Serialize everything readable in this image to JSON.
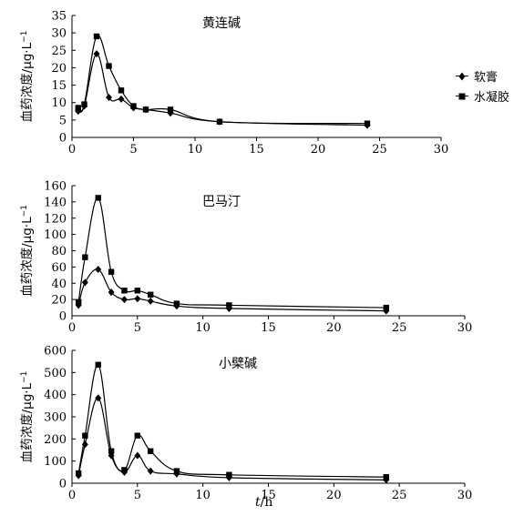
{
  "chart_data": [
    {
      "type": "line",
      "title": "黄连碱",
      "ylabel": "血药浓度/μg·L⁻¹",
      "xlim": [
        0,
        30
      ],
      "ylim": [
        0,
        35
      ],
      "xticks": [
        0,
        5,
        10,
        15,
        20,
        25,
        30
      ],
      "yticks": [
        0,
        5,
        10,
        15,
        20,
        25,
        30,
        35
      ],
      "series": [
        {
          "name": "软膏",
          "marker": "diamond",
          "x": [
            0.5,
            1,
            2,
            3,
            4,
            5,
            6,
            8,
            12,
            24
          ],
          "y": [
            7.5,
            9,
            24,
            11.5,
            11,
            8.5,
            8,
            7,
            4.5,
            3.5
          ]
        },
        {
          "name": "水凝胶",
          "marker": "square",
          "x": [
            0.5,
            1,
            2,
            3,
            4,
            5,
            6,
            8,
            12,
            24
          ],
          "y": [
            8.5,
            9.5,
            29,
            20.5,
            13.5,
            9,
            8,
            8,
            4.5,
            4
          ]
        }
      ]
    },
    {
      "type": "line",
      "title": "巴马汀",
      "ylabel": "血药浓度/μg·L⁻¹",
      "xlim": [
        0,
        30
      ],
      "ylim": [
        0,
        160
      ],
      "xticks": [
        0,
        5,
        10,
        15,
        20,
        25,
        30
      ],
      "yticks": [
        0,
        20,
        40,
        60,
        80,
        100,
        120,
        140,
        160
      ],
      "series": [
        {
          "name": "软膏",
          "marker": "diamond",
          "x": [
            0.5,
            1,
            2,
            3,
            4,
            5,
            6,
            8,
            12,
            24
          ],
          "y": [
            13,
            41,
            57,
            29,
            20,
            21,
            18,
            12,
            9,
            6
          ]
        },
        {
          "name": "水凝胶",
          "marker": "square",
          "x": [
            0.5,
            1,
            2,
            3,
            4,
            5,
            6,
            8,
            12,
            24
          ],
          "y": [
            17,
            72,
            145,
            54,
            31,
            31,
            26,
            15,
            13,
            10
          ]
        }
      ]
    },
    {
      "type": "line",
      "title": "小檗碱",
      "ylabel": "血药浓度/μg·L⁻¹",
      "xlabel": "t/h",
      "xlim": [
        0,
        30
      ],
      "ylim": [
        0,
        600
      ],
      "xticks": [
        0,
        5,
        10,
        15,
        20,
        25,
        30
      ],
      "yticks": [
        0,
        100,
        200,
        300,
        400,
        500,
        600
      ],
      "series": [
        {
          "name": "软膏",
          "marker": "diamond",
          "x": [
            0.5,
            1,
            2,
            3,
            4,
            5,
            6,
            8,
            12,
            24
          ],
          "y": [
            35,
            175,
            385,
            125,
            50,
            125,
            55,
            42,
            25,
            15
          ]
        },
        {
          "name": "水凝胶",
          "marker": "square",
          "x": [
            0.5,
            1,
            2,
            3,
            4,
            5,
            6,
            8,
            12,
            24
          ],
          "y": [
            45,
            215,
            535,
            145,
            60,
            215,
            145,
            55,
            38,
            28
          ]
        }
      ]
    }
  ],
  "legend": {
    "items": [
      {
        "label": "软膏",
        "marker": "diamond"
      },
      {
        "label": "水凝胶",
        "marker": "square"
      }
    ]
  },
  "axes": {
    "ylabel_text": "血药浓度/μg·L",
    "ylabel_sup": "−1",
    "xlabel_var": "t",
    "xlabel_unit": "/h"
  }
}
